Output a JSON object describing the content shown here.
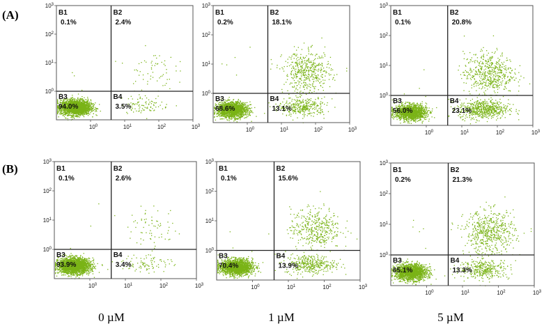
{
  "chart_data": [
    {
      "type": "scatter",
      "row": "(A)",
      "condition": "0 µM",
      "quadrants": {
        "B1": "0.1%",
        "B2": "2.4%",
        "B3": "94.0%",
        "B4": "3.5%"
      },
      "x_ticks": [
        "10^0",
        "10^1",
        "10^2",
        "10^3"
      ],
      "y_ticks": [
        "10^0",
        "10^1",
        "10^2",
        "10^3"
      ],
      "gate": {
        "x": 4,
        "y": 1
      },
      "xlim": [
        0.1,
        1000
      ],
      "ylim": [
        0.1,
        1000
      ],
      "log_axes": true,
      "color": "#7ab317"
    },
    {
      "type": "scatter",
      "row": "(A)",
      "condition": "1 µM",
      "quadrants": {
        "B1": "0.2%",
        "B2": "18.1%",
        "B3": "68.6%",
        "B4": "13.1%"
      },
      "x_ticks": [
        "10^0",
        "10^1",
        "10^2",
        "10^3"
      ],
      "y_ticks": [
        "10^0",
        "10^1",
        "10^2",
        "10^3"
      ],
      "gate": {
        "x": 4,
        "y": 1
      },
      "xlim": [
        0.1,
        1000
      ],
      "ylim": [
        0.1,
        1000
      ],
      "log_axes": true,
      "color": "#7ab317"
    },
    {
      "type": "scatter",
      "row": "(A)",
      "condition": "5 µM",
      "quadrants": {
        "B1": "0.1%",
        "B2": "20.8%",
        "B3": "56.0%",
        "B4": "23.1%"
      },
      "x_ticks": [
        "10^0",
        "10^1",
        "10^2",
        "10^3"
      ],
      "y_ticks": [
        "10^0",
        "10^1",
        "10^2",
        "10^3"
      ],
      "gate": {
        "x": 4,
        "y": 1
      },
      "xlim": [
        0.1,
        1000
      ],
      "ylim": [
        0.1,
        1000
      ],
      "log_axes": true,
      "color": "#7ab317"
    },
    {
      "type": "scatter",
      "row": "(B)",
      "condition": "0 µM",
      "quadrants": {
        "B1": "0.1%",
        "B2": "2.6%",
        "B3": "93.9%",
        "B4": "3.4%"
      },
      "x_ticks": [
        "10^0",
        "10^1",
        "10^2",
        "10^3"
      ],
      "y_ticks": [
        "10^0",
        "10^1",
        "10^2",
        "10^3"
      ],
      "gate": {
        "x": 4,
        "y": 1
      },
      "xlim": [
        0.1,
        1000
      ],
      "ylim": [
        0.1,
        1000
      ],
      "log_axes": true,
      "color": "#7ab317"
    },
    {
      "type": "scatter",
      "row": "(B)",
      "condition": "1 µM",
      "quadrants": {
        "B1": "0.1%",
        "B2": "15.6%",
        "B3": "70.4%",
        "B4": "13.9%"
      },
      "x_ticks": [
        "10^0",
        "10^1",
        "10^2",
        "10^3"
      ],
      "y_ticks": [
        "10^0",
        "10^1",
        "10^2",
        "10^3"
      ],
      "gate": {
        "x": 4,
        "y": 1
      },
      "xlim": [
        0.1,
        1000
      ],
      "ylim": [
        0.1,
        1000
      ],
      "log_axes": true,
      "color": "#7ab317"
    },
    {
      "type": "scatter",
      "row": "(B)",
      "condition": "5 µM",
      "quadrants": {
        "B1": "0.2%",
        "B2": "21.3%",
        "B3": "65.1%",
        "B4": "13.3%"
      },
      "x_ticks": [
        "10^0",
        "10^1",
        "10^2",
        "10^3"
      ],
      "y_ticks": [
        "10^0",
        "10^1",
        "10^2",
        "10^3"
      ],
      "gate": {
        "x": 4,
        "y": 1
      },
      "xlim": [
        0.1,
        1000
      ],
      "ylim": [
        0.1,
        1000
      ],
      "log_axes": true,
      "color": "#7ab317"
    }
  ],
  "row_labels": [
    "(A)",
    "(B)"
  ],
  "column_labels": [
    "0 µM",
    "1 µM",
    "5 µM"
  ]
}
